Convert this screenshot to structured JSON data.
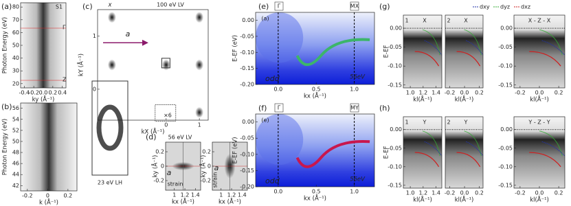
{
  "panels": [
    {
      "label": "(a)",
      "texts": [
        "S1",
        "Γ",
        "Z"
      ],
      "plots": [
        {
          "ylabel": "Photon Energy (eV)",
          "yticks": [
            "80",
            "70",
            "60",
            "50",
            "40",
            "30",
            "20"
          ],
          "xticks": [
            "-0.4",
            "-0.2",
            "0.0",
            "0.2",
            "0.4"
          ],
          "xlabel": "ky (Å⁻¹)"
        }
      ]
    },
    {
      "label": "(b)",
      "plots": [
        {
          "ylabel": "Photon Energy (eV)",
          "yticks": [
            "56",
            "54",
            "52",
            "50",
            "48",
            "46",
            "44",
            "42"
          ],
          "xticks": [
            "-0.2",
            "0",
            "0.2"
          ],
          "xlabel": "k (Å⁻¹)"
        }
      ]
    },
    {
      "label": "(c)",
      "texts": [
        "100 eV LV",
        "x",
        "a",
        "×6",
        "23 eV LH"
      ],
      "plots": [
        {
          "ylabel": "kY (Å⁻¹)",
          "yticks": [
            "1",
            "0"
          ],
          "xticks": [
            "0",
            "1"
          ],
          "xlabel": "kX (Å⁻¹)"
        }
      ]
    },
    {
      "label": "(d)",
      "texts": [
        "56 eV LV",
        "a",
        "strain",
        "a",
        "strain"
      ],
      "plots": [
        {
          "ylabel": "ky (Å⁻¹)",
          "yticks": [
            "0.2",
            "0",
            "-0.2"
          ],
          "xticks": [
            "1",
            "1.2",
            "1.4"
          ],
          "xlabel": "kx (Å⁻¹)"
        },
        {
          "ylabel": "ky (Å⁻¹)",
          "yticks": [
            "0.2",
            "0",
            "-0.2"
          ],
          "xticks": [
            "1",
            "1.2",
            "1.4"
          ],
          "xlabel": "kx (Å⁻¹)"
        }
      ]
    },
    {
      "label": "(e)",
      "texts": [
        "(a)",
        "Γ",
        "MX",
        "odd",
        "56eV"
      ],
      "plots": [
        {
          "ylabel": "E-EF (eV)",
          "yticks": [
            "0.00",
            "-0.05",
            "-0.10",
            "-0.15",
            "-0.20"
          ],
          "xticks": [
            "0.0",
            "0.5",
            "1.0"
          ],
          "xlabel": "kx (Å⁻¹)"
        }
      ]
    },
    {
      "label": "(f)",
      "texts": [
        "(e)",
        "Γ",
        "MY",
        "odd",
        "56eV"
      ],
      "plots": [
        {
          "ylabel": "E-EF (eV)",
          "yticks": [
            "0.00",
            "-0.05",
            "-0.10",
            "-0.15",
            "-0.20"
          ],
          "xticks": [
            "0.0",
            "0.5",
            "1.0"
          ],
          "xlabel": "kx (Å⁻¹)"
        }
      ]
    },
    {
      "label": "(g)",
      "texts": [
        "1",
        "X",
        "2",
        "X",
        "X - Z - X"
      ],
      "legend": [
        "dxy",
        "dyz",
        "dxz"
      ],
      "plots": [
        {
          "ylabel": "E-EF",
          "yticks": [
            "0.00",
            "-0.05",
            "-0.10",
            "-0.15"
          ],
          "xticks": [
            "1.0",
            "1.2",
            "1.4"
          ],
          "xlabel": "kl(Å⁻¹)"
        },
        {
          "xticks": [
            "-0.2",
            "0.0",
            "0.2"
          ],
          "xlabel": "kl(Å⁻¹)"
        },
        {
          "yticks": [
            "0.00",
            "-0.05",
            "-0.10",
            "-0.15"
          ],
          "xticks": [
            "-0.2",
            "0.0",
            "0.2"
          ],
          "xlabel": "kl(Å⁻¹)"
        }
      ]
    },
    {
      "label": "(h)",
      "texts": [
        "1",
        "Y",
        "2",
        "Y",
        "Y - Z - Y"
      ],
      "plots": [
        {
          "ylabel": "E-EF",
          "yticks": [
            "0.00",
            "-0.05",
            "-0.10",
            "-0.15"
          ],
          "xticks": [
            "1.0",
            "1.2",
            "1.4"
          ],
          "xlabel": "kl(Å⁻¹)"
        },
        {
          "xticks": [
            "-0.2",
            "0.0",
            "0.2"
          ],
          "xlabel": "kl(Å⁻¹)"
        },
        {
          "yticks": [
            "0.00",
            "-0.05",
            "-0.10",
            "-0.15"
          ],
          "xticks": [
            "-0.2",
            "0.0",
            "0.2"
          ],
          "xlabel": "kl(Å⁻¹)"
        }
      ]
    }
  ]
}
